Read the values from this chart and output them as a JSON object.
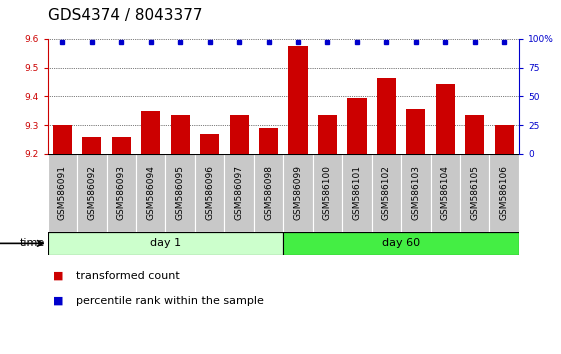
{
  "title": "GDS4374 / 8043377",
  "samples": [
    "GSM586091",
    "GSM586092",
    "GSM586093",
    "GSM586094",
    "GSM586095",
    "GSM586096",
    "GSM586097",
    "GSM586098",
    "GSM586099",
    "GSM586100",
    "GSM586101",
    "GSM586102",
    "GSM586103",
    "GSM586104",
    "GSM586105",
    "GSM586106"
  ],
  "bar_values": [
    9.3,
    9.26,
    9.26,
    9.35,
    9.335,
    9.27,
    9.335,
    9.29,
    9.575,
    9.335,
    9.395,
    9.465,
    9.355,
    9.445,
    9.335,
    9.3
  ],
  "dot_values": [
    97,
    97,
    97,
    97,
    97,
    97,
    97,
    97,
    97,
    97,
    97,
    97,
    97,
    97,
    97,
    97
  ],
  "groups": [
    {
      "label": "day 1",
      "start": 0,
      "end": 8,
      "color_light": "#ccffcc",
      "color_dark": "#44ee44"
    },
    {
      "label": "day 60",
      "start": 8,
      "end": 16,
      "color_light": "#44ee44",
      "color_dark": "#44ee44"
    }
  ],
  "ylim_left": [
    9.2,
    9.6
  ],
  "ylim_right": [
    0,
    100
  ],
  "yticks_left": [
    9.2,
    9.3,
    9.4,
    9.5,
    9.6
  ],
  "yticks_right": [
    0,
    25,
    50,
    75,
    100
  ],
  "bar_color": "#cc0000",
  "dot_color": "#0000cc",
  "bar_bottom": 9.2,
  "title_fontsize": 11,
  "tick_fontsize": 6.5,
  "label_fontsize": 8,
  "legend_bar": "transformed count",
  "legend_dot": "percentile rank within the sample"
}
